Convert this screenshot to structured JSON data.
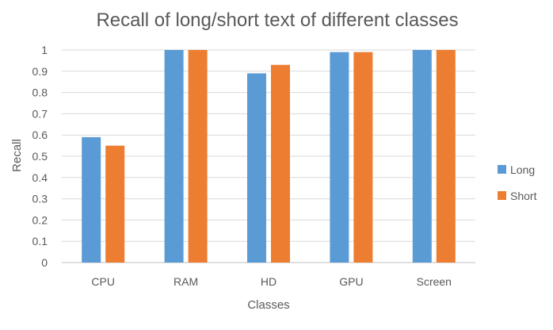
{
  "chart_data": {
    "type": "bar",
    "title": "Recall of long/short text of different classes",
    "xlabel": "Classes",
    "ylabel": "Recall",
    "categories": [
      "CPU",
      "RAM",
      "HD",
      "GPU",
      "Screen"
    ],
    "series": [
      {
        "name": "Long",
        "color": "#5B9BD5",
        "values": [
          0.59,
          1.0,
          0.89,
          0.99,
          1.0
        ]
      },
      {
        "name": "Short",
        "color": "#ED7D31",
        "values": [
          0.55,
          1.0,
          0.93,
          0.99,
          1.0
        ]
      }
    ],
    "ylim": [
      0,
      1
    ],
    "yticks": [
      "0",
      "0.1",
      "0.2",
      "0.3",
      "0.4",
      "0.5",
      "0.6",
      "0.7",
      "0.8",
      "0.9",
      "1"
    ],
    "grid": true,
    "legend_position": "right"
  }
}
